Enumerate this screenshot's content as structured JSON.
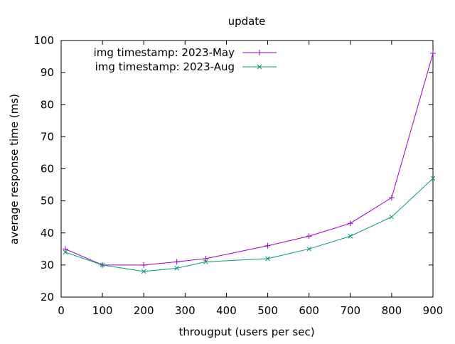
{
  "chart_data": {
    "type": "line",
    "title": "update",
    "xlabel": "througput (users per sec)",
    "ylabel": "average response time (ms)",
    "xlim": [
      0,
      900
    ],
    "ylim": [
      20,
      100
    ],
    "xticks": [
      0,
      100,
      200,
      300,
      400,
      500,
      600,
      700,
      800,
      900
    ],
    "yticks": [
      20,
      30,
      40,
      50,
      60,
      70,
      80,
      90,
      100
    ],
    "grid": false,
    "legend_position": "top-left",
    "series": [
      {
        "name": "img timestamp: 2023-May",
        "color": "#9400d3",
        "marker": "plus",
        "x": [
          10,
          100,
          200,
          280,
          350,
          500,
          600,
          700,
          800,
          900
        ],
        "y": [
          35,
          30,
          30,
          31,
          32,
          36,
          39,
          43,
          51,
          96
        ]
      },
      {
        "name": "img timestamp: 2023-Aug",
        "color": "#009e73",
        "marker": "cross",
        "x": [
          10,
          100,
          200,
          280,
          350,
          500,
          600,
          700,
          800,
          900
        ],
        "y": [
          34,
          30,
          28,
          29,
          31,
          32,
          35,
          39,
          45,
          57
        ]
      }
    ]
  }
}
